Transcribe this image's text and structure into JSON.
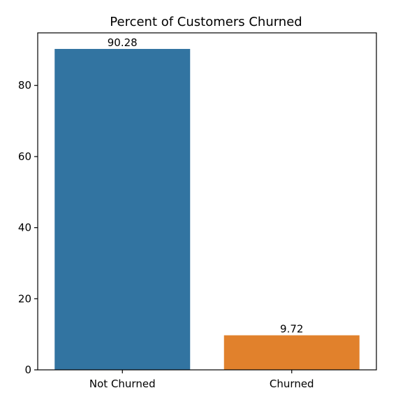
{
  "chart_data": {
    "type": "bar",
    "title": "Percent of Customers Churned",
    "xlabel": "",
    "ylabel": "",
    "categories": [
      "Not Churned",
      "Churned"
    ],
    "values": [
      90.28,
      9.72
    ],
    "value_labels": [
      "90.28",
      "9.72"
    ],
    "colors": [
      "#3274a1",
      "#e1812c"
    ],
    "ylim": [
      0,
      94.8
    ],
    "yticks": [
      0,
      20,
      40,
      60,
      80
    ],
    "grid": false,
    "legend": "none"
  }
}
